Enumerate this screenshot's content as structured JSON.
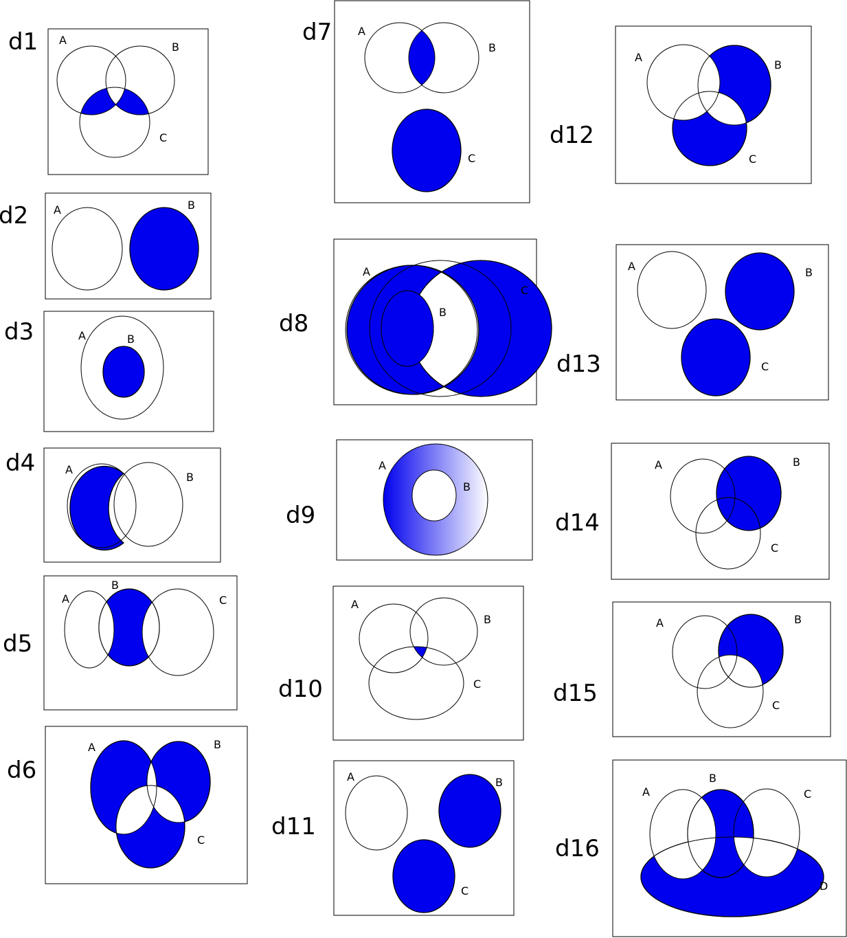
{
  "colors": {
    "shade": "#0000ee",
    "line": "#000000",
    "background": "#ffffff",
    "gradient_end": "#ffffff"
  },
  "diagrams": {
    "d1": {
      "title": "d1",
      "labels": {
        "A": "A",
        "B": "B",
        "C": "C"
      }
    },
    "d2": {
      "title": "d2",
      "labels": {
        "A": "A",
        "B": "B"
      }
    },
    "d3": {
      "title": "d3",
      "labels": {
        "A": "A",
        "B": "B"
      }
    },
    "d4": {
      "title": "d4",
      "labels": {
        "A": "A",
        "B": "B"
      }
    },
    "d5": {
      "title": "d5",
      "labels": {
        "A": "A",
        "B": "B",
        "C": "C"
      }
    },
    "d6": {
      "title": "d6",
      "labels": {
        "A": "A",
        "B": "B",
        "C": "C"
      }
    },
    "d7": {
      "title": "d7",
      "labels": {
        "A": "A",
        "B": "B",
        "C": "C"
      }
    },
    "d8": {
      "title": "d8",
      "labels": {
        "A": "A",
        "B": "B",
        "C": "C"
      }
    },
    "d9": {
      "title": "d9",
      "labels": {
        "A": "A",
        "B": "B"
      }
    },
    "d10": {
      "title": "d10",
      "labels": {
        "A": "A",
        "B": "B",
        "C": "C"
      }
    },
    "d11": {
      "title": "d11",
      "labels": {
        "A": "A",
        "B": "B",
        "C": "C"
      }
    },
    "d12": {
      "title": "d12",
      "labels": {
        "A": "A",
        "B": "B",
        "C": "C"
      }
    },
    "d13": {
      "title": "d13",
      "labels": {
        "A": "A",
        "B": "B",
        "C": "C"
      }
    },
    "d14": {
      "title": "d14",
      "labels": {
        "A": "A",
        "B": "B",
        "C": "C"
      }
    },
    "d15": {
      "title": "d15",
      "labels": {
        "A": "A",
        "B": "B",
        "C": "C"
      }
    },
    "d16": {
      "title": "d16",
      "labels": {
        "A": "A",
        "B": "B",
        "C": "C",
        "D": "D"
      }
    }
  }
}
